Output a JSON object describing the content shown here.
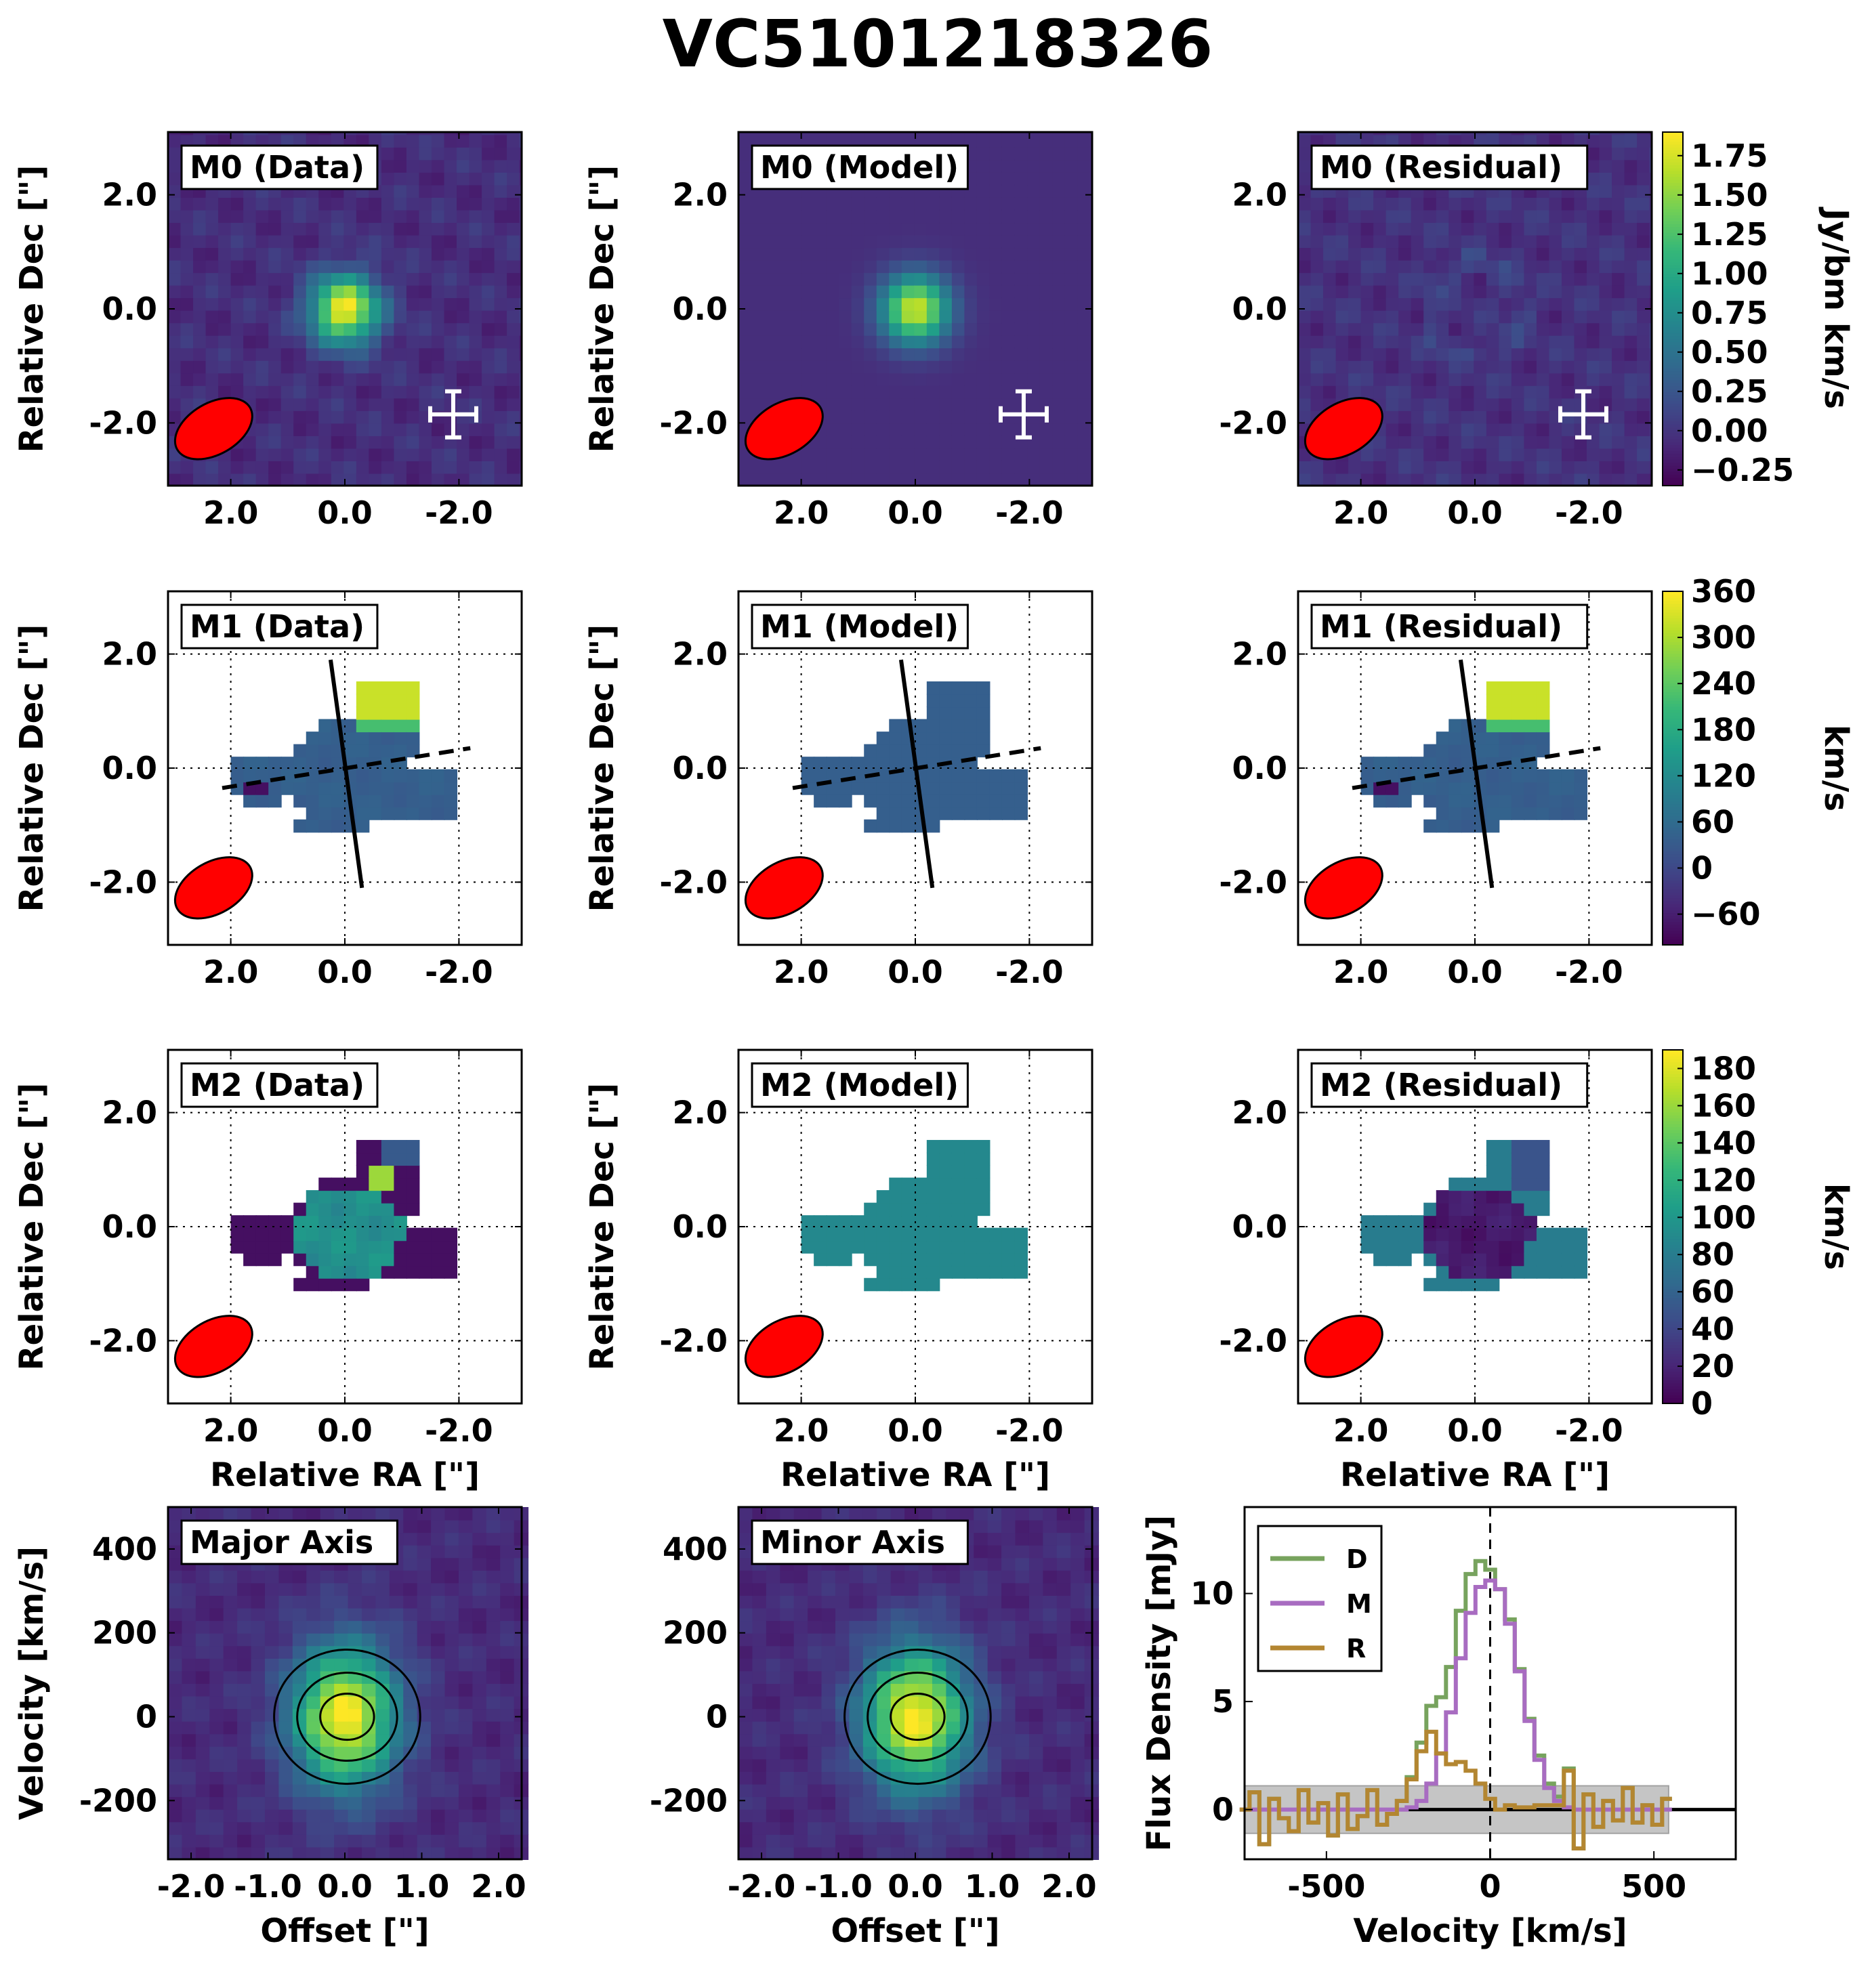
{
  "figure": {
    "title": "VC5101218326"
  },
  "colors": {
    "viridis": [
      "#440154",
      "#482878",
      "#3e4a89",
      "#31688e",
      "#26828e",
      "#1f9e89",
      "#35b779",
      "#6ece58",
      "#b5de2b",
      "#fde725"
    ],
    "beam": "#ff0000",
    "spec_D": "#77a35e",
    "spec_M": "#a86cc1",
    "spec_R": "#b38631",
    "noise_band": "#bfbfbf"
  },
  "chart_data": [
    {
      "type": "heatmap",
      "id": "m0-data",
      "label": "M0 (Data)",
      "ylabel": "Relative Dec [\"]",
      "xlabel": "",
      "xlim": [
        3.1,
        -3.1
      ],
      "ylim": [
        -3.1,
        3.1
      ],
      "xticks": [
        "2.0",
        "0.0",
        "-2.0"
      ],
      "yticks": [
        "2.0",
        "0.0",
        "-2.0"
      ],
      "grid": false,
      "beam": true,
      "error_cross": true
    },
    {
      "type": "heatmap",
      "id": "m0-model",
      "label": "M0 (Model)",
      "ylabel": "Relative Dec [\"]",
      "xlabel": "",
      "xlim": [
        3.1,
        -3.1
      ],
      "ylim": [
        -3.1,
        3.1
      ],
      "xticks": [
        "2.0",
        "0.0",
        "-2.0"
      ],
      "yticks": [
        "2.0",
        "0.0",
        "-2.0"
      ],
      "grid": false,
      "beam": true,
      "error_cross": true
    },
    {
      "type": "heatmap",
      "id": "m0-residual",
      "label": "M0 (Residual)",
      "ylabel": "",
      "xlabel": "",
      "xlim": [
        3.1,
        -3.1
      ],
      "ylim": [
        -3.1,
        3.1
      ],
      "xticks": [
        "2.0",
        "0.0",
        "-2.0"
      ],
      "yticks": [
        "2.0",
        "0.0",
        "-2.0"
      ],
      "grid": false,
      "beam": true,
      "error_cross": true,
      "colorbar": {
        "label": "Jy/bm km/s",
        "range": [
          -0.35,
          1.9
        ],
        "ticks": [
          -0.25,
          0.0,
          0.25,
          0.5,
          0.75,
          1.0,
          1.25,
          1.5,
          1.75
        ],
        "tick_labels": [
          "−0.25",
          "0.00",
          "0.25",
          "0.50",
          "0.75",
          "1.00",
          "1.25",
          "1.50",
          "1.75"
        ]
      }
    },
    {
      "type": "heatmap",
      "id": "m1-data",
      "label": "M1 (Data)",
      "ylabel": "Relative Dec [\"]",
      "xlabel": "",
      "xlim": [
        3.1,
        -3.1
      ],
      "ylim": [
        -3.1,
        3.1
      ],
      "xticks": [
        "2.0",
        "0.0",
        "-2.0"
      ],
      "yticks": [
        "2.0",
        "0.0",
        "-2.0"
      ],
      "grid": true,
      "beam": true,
      "axes_lines": true
    },
    {
      "type": "heatmap",
      "id": "m1-model",
      "label": "M1 (Model)",
      "ylabel": "Relative Dec [\"]",
      "xlabel": "",
      "xlim": [
        3.1,
        -3.1
      ],
      "ylim": [
        -3.1,
        3.1
      ],
      "xticks": [
        "2.0",
        "0.0",
        "-2.0"
      ],
      "yticks": [
        "2.0",
        "0.0",
        "-2.0"
      ],
      "grid": true,
      "beam": true,
      "axes_lines": true
    },
    {
      "type": "heatmap",
      "id": "m1-residual",
      "label": "M1 (Residual)",
      "ylabel": "",
      "xlabel": "",
      "xlim": [
        3.1,
        -3.1
      ],
      "ylim": [
        -3.1,
        3.1
      ],
      "xticks": [
        "2.0",
        "0.0",
        "-2.0"
      ],
      "yticks": [
        "2.0",
        "0.0",
        "-2.0"
      ],
      "grid": true,
      "beam": true,
      "axes_lines": true,
      "colorbar": {
        "label": "km/s",
        "range": [
          -100,
          360
        ],
        "ticks": [
          -60,
          0,
          60,
          120,
          180,
          240,
          300,
          360
        ],
        "tick_labels": [
          "−60",
          "0",
          "60",
          "120",
          "180",
          "240",
          "300",
          "360"
        ]
      }
    },
    {
      "type": "heatmap",
      "id": "m2-data",
      "label": "M2 (Data)",
      "ylabel": "Relative Dec [\"]",
      "xlabel": "Relative RA [\"]",
      "xlim": [
        3.1,
        -3.1
      ],
      "ylim": [
        -3.1,
        3.1
      ],
      "xticks": [
        "2.0",
        "0.0",
        "-2.0"
      ],
      "yticks": [
        "2.0",
        "0.0",
        "-2.0"
      ],
      "grid": true,
      "beam": true
    },
    {
      "type": "heatmap",
      "id": "m2-model",
      "label": "M2 (Model)",
      "ylabel": "Relative Dec [\"]",
      "xlabel": "Relative RA [\"]",
      "xlim": [
        3.1,
        -3.1
      ],
      "ylim": [
        -3.1,
        3.1
      ],
      "xticks": [
        "2.0",
        "0.0",
        "-2.0"
      ],
      "yticks": [
        "2.0",
        "0.0",
        "-2.0"
      ],
      "grid": true,
      "beam": true
    },
    {
      "type": "heatmap",
      "id": "m2-residual",
      "label": "M2 (Residual)",
      "ylabel": "",
      "xlabel": "Relative RA [\"]",
      "xlim": [
        3.1,
        -3.1
      ],
      "ylim": [
        -3.1,
        3.1
      ],
      "xticks": [
        "2.0",
        "0.0",
        "-2.0"
      ],
      "yticks": [
        "2.0",
        "0.0",
        "-2.0"
      ],
      "grid": true,
      "beam": true,
      "colorbar": {
        "label": "km/s",
        "range": [
          0,
          190
        ],
        "ticks": [
          0,
          20,
          40,
          60,
          80,
          100,
          120,
          140,
          160,
          180
        ],
        "tick_labels": [
          "0",
          "20",
          "40",
          "60",
          "80",
          "100",
          "120",
          "140",
          "160",
          "180"
        ]
      }
    },
    {
      "type": "heatmap",
      "id": "pv-major",
      "label": "Major Axis",
      "ylabel": "Velocity [km/s]",
      "xlabel": "Offset [\"]",
      "xlim": [
        -2.3,
        2.3
      ],
      "ylim": [
        -340,
        500
      ],
      "xticks": [
        "-2.0",
        "-1.0",
        "0.0",
        "1.0",
        "2.0"
      ],
      "yticks": [
        "400",
        "200",
        "0",
        "-200"
      ],
      "contours": true
    },
    {
      "type": "heatmap",
      "id": "pv-minor",
      "label": "Minor Axis",
      "ylabel": "",
      "xlabel": "Offset [\"]",
      "xlim": [
        -2.3,
        2.3
      ],
      "ylim": [
        -340,
        500
      ],
      "xticks": [
        "-2.0",
        "-1.0",
        "0.0",
        "1.0",
        "2.0"
      ],
      "yticks": [
        "400",
        "200",
        "0",
        "-200"
      ],
      "contours": true
    },
    {
      "type": "line",
      "id": "spectrum",
      "label": "",
      "xlabel": "Velocity [km/s]",
      "ylabel": "Flux Density [mJy]",
      "xlim": [
        -750,
        750
      ],
      "ylim": [
        -2.3,
        14.0
      ],
      "xticks": [
        -500,
        0,
        500
      ],
      "yticks": [
        0,
        5,
        10
      ],
      "legend_position": "top-left",
      "noise_band": [
        -1.1,
        1.1
      ],
      "noise_band_x": [
        -750,
        545
      ],
      "x": [
        -750,
        -720,
        -690,
        -660,
        -630,
        -600,
        -570,
        -540,
        -510,
        -480,
        -450,
        -420,
        -390,
        -360,
        -330,
        -300,
        -270,
        -240,
        -210,
        -180,
        -150,
        -120,
        -90,
        -60,
        -30,
        0,
        30,
        60,
        90,
        120,
        150,
        180,
        210,
        240,
        270,
        300,
        330,
        360,
        390,
        420,
        450,
        480,
        510,
        540
      ],
      "series": [
        {
          "name": "D",
          "values": [
            0.0,
            0.8,
            -1.6,
            0.5,
            -0.4,
            -1.0,
            0.9,
            -0.6,
            0.3,
            -1.2,
            0.7,
            -0.9,
            -0.3,
            0.9,
            -0.7,
            -0.2,
            0.4,
            1.5,
            3.1,
            4.8,
            5.2,
            6.6,
            9.2,
            10.9,
            11.5,
            11.1,
            10.2,
            8.8,
            6.5,
            4.2,
            2.5,
            1.2,
            0.6,
            1.9,
            -1.8,
            0.7,
            -0.8,
            0.4,
            -0.5,
            1.0,
            -0.6,
            0.2,
            -0.7,
            0.5
          ]
        },
        {
          "name": "M",
          "values": [
            0,
            0,
            0,
            0,
            0,
            0,
            0,
            0,
            0,
            0,
            0,
            0,
            0,
            0,
            0,
            0,
            0,
            0.1,
            0.4,
            1.2,
            2.6,
            4.5,
            7.0,
            9.1,
            10.3,
            10.6,
            10.2,
            8.6,
            6.4,
            4.1,
            2.3,
            1.0,
            0.4,
            0.1,
            0,
            0,
            0,
            0,
            0,
            0,
            0,
            0,
            0,
            0
          ]
        },
        {
          "name": "R",
          "values": [
            0.0,
            0.8,
            -1.6,
            0.5,
            -0.4,
            -1.0,
            0.9,
            -0.6,
            0.3,
            -1.2,
            0.7,
            -0.9,
            -0.3,
            0.9,
            -0.7,
            -0.2,
            0.4,
            1.4,
            2.7,
            3.6,
            2.6,
            2.1,
            2.2,
            1.8,
            1.2,
            0.5,
            0.0,
            0.2,
            0.1,
            0.1,
            0.2,
            0.2,
            0.2,
            1.8,
            -1.8,
            0.7,
            -0.8,
            0.4,
            -0.5,
            1.0,
            -0.6,
            0.2,
            -0.7,
            0.5
          ]
        }
      ]
    }
  ]
}
